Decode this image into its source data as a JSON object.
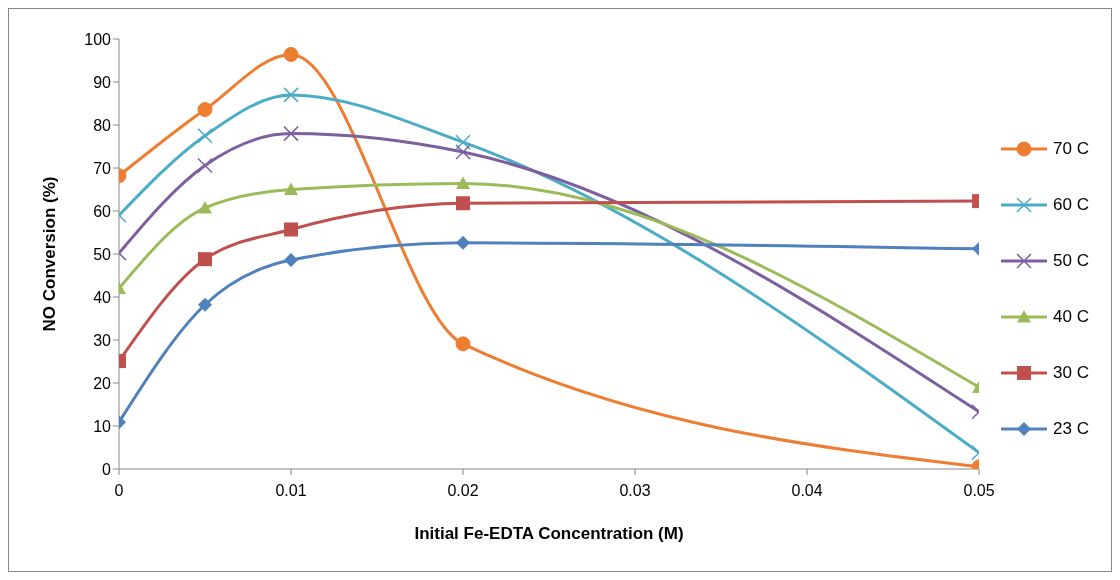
{
  "chart_data": {
    "type": "line",
    "xlabel": "Initial Fe-EDTA Concentration (M)",
    "ylabel": "NO Conversion (%)",
    "x": [
      0,
      0.005,
      0.01,
      0.02,
      0.05
    ],
    "xlim": [
      0,
      0.05
    ],
    "xticks": [
      0,
      0.01,
      0.02,
      0.03,
      0.04,
      0.05
    ],
    "ylim": [
      0,
      100
    ],
    "yticks": [
      0,
      10,
      20,
      30,
      40,
      50,
      60,
      70,
      80,
      90,
      100
    ],
    "grid": false,
    "legend": "right",
    "line_style": "solid",
    "series": [
      {
        "name": "70 C",
        "color": "#ed7d31",
        "marker": "circle",
        "values": [
          68.2,
          83.6,
          96.4,
          29.1,
          0.5
        ]
      },
      {
        "name": "60 C",
        "color": "#4bacc6",
        "marker": "cross",
        "values": [
          59,
          77.5,
          87,
          76,
          3.8
        ]
      },
      {
        "name": "50 C",
        "color": "#7d5fa0",
        "marker": "cross",
        "values": [
          50.2,
          70.6,
          78,
          73.7,
          13.3
        ]
      },
      {
        "name": "40 C",
        "color": "#9bbb59",
        "marker": "triangle",
        "values": [
          42,
          60.7,
          65,
          66.4,
          19
        ]
      },
      {
        "name": "30 C",
        "color": "#c0504d",
        "marker": "square",
        "values": [
          25.1,
          48.8,
          55.7,
          61.8,
          62.3
        ]
      },
      {
        "name": "23 C",
        "color": "#4f81bd",
        "marker": "diamond",
        "values": [
          10.9,
          38.2,
          48.6,
          52.6,
          51.2
        ]
      }
    ]
  }
}
